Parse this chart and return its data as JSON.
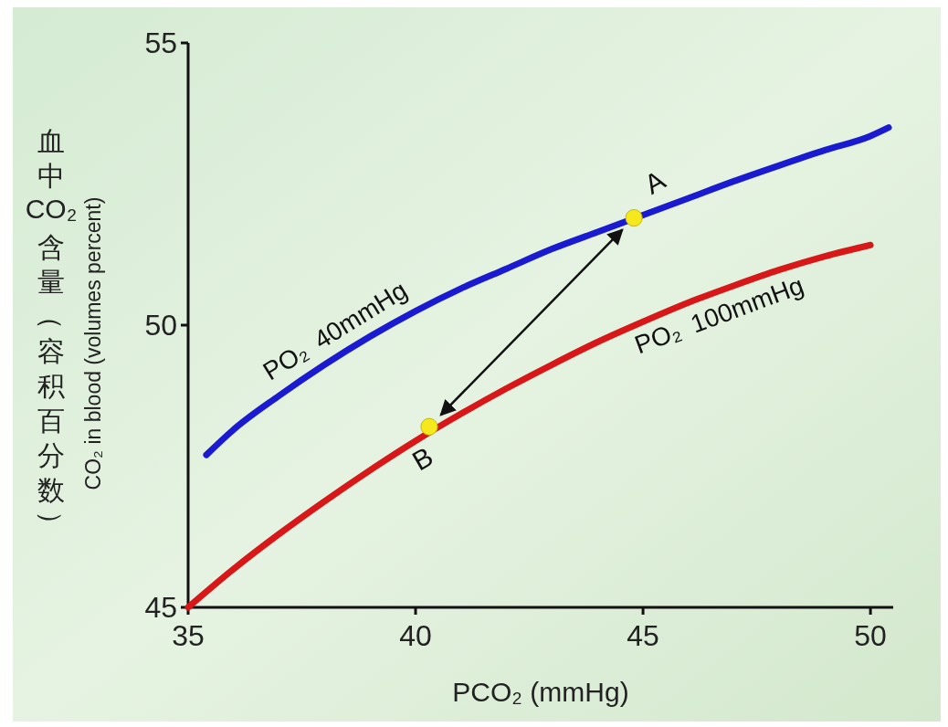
{
  "chart_data": {
    "type": "line",
    "xlabel": "PCO₂ (mmHg)",
    "ylabel": "CO₂ in blood (volumes percent)",
    "annotations": [
      "血中CO₂含量（容积百分数）",
      {
        "text": "A",
        "x": 44.8,
        "y": 51.9
      },
      {
        "text": "B",
        "x": 40.3,
        "y": 48.2
      }
    ],
    "xlim": [
      35,
      50.5
    ],
    "ylim": [
      45,
      55
    ],
    "xticks": [
      35,
      40,
      45,
      50
    ],
    "yticks": [
      45,
      50,
      55
    ],
    "marker": "none",
    "line_style": "solid",
    "series": [
      {
        "name": "PO₂ 40mmHg",
        "color": "#1a1ad0",
        "x": [
          35.4,
          36,
          37,
          38,
          39,
          40,
          41,
          42,
          43,
          44,
          45,
          46,
          47,
          48,
          49,
          50,
          50.4
        ],
        "values": [
          47.7,
          48.15,
          48.75,
          49.3,
          49.8,
          50.25,
          50.65,
          51.0,
          51.35,
          51.65,
          51.95,
          52.25,
          52.55,
          52.83,
          53.1,
          53.35,
          53.5
        ]
      },
      {
        "name": "PO₂ 100mmHg",
        "color": "#d81818",
        "x": [
          35,
          36,
          37,
          38,
          39,
          40,
          41,
          42,
          43,
          44,
          45,
          46,
          47,
          48,
          49,
          50
        ],
        "values": [
          45,
          45.68,
          46.3,
          46.88,
          47.43,
          47.95,
          48.43,
          48.88,
          49.3,
          49.7,
          50.06,
          50.4,
          50.7,
          50.98,
          51.22,
          51.42
        ]
      },
      {
        "type": "scatter",
        "color": "#f5e81c",
        "marker": "circle",
        "x": [
          44.8,
          40.3
        ],
        "values": [
          51.9,
          48.2
        ]
      }
    ]
  }
}
